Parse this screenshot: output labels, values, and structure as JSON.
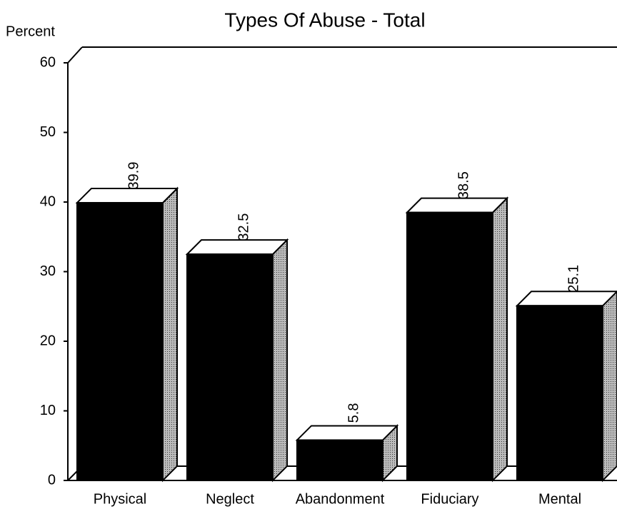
{
  "chart_data": {
    "type": "bar",
    "title": "Types Of Abuse - Total",
    "y_label": "Percent",
    "categories": [
      "Physical",
      "Neglect",
      "Abandonment",
      "Fiduciary",
      "Mental"
    ],
    "values": [
      39.9,
      32.5,
      5.8,
      38.5,
      25.1
    ],
    "color": "#000000",
    "ylim": [
      0,
      60
    ],
    "yticks": [
      0,
      10,
      20,
      30,
      40,
      50,
      60
    ]
  }
}
